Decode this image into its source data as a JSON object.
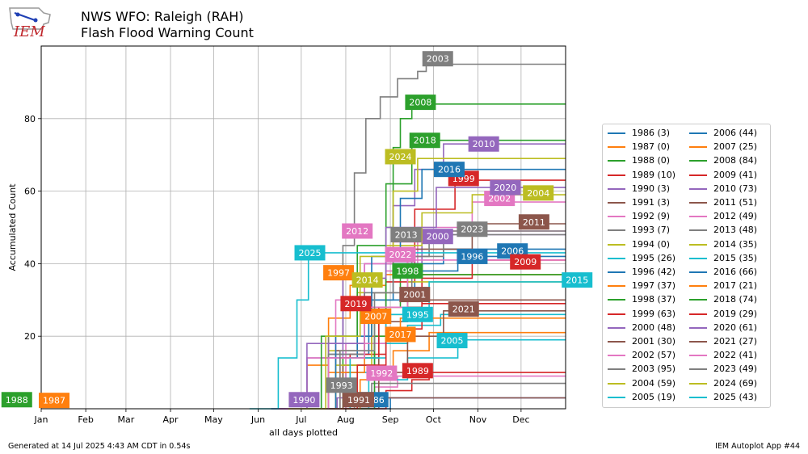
{
  "header": {
    "logo_text": "IEM",
    "title_line1": "NWS WFO: Raleigh (RAH)",
    "title_line2": "Flash Flood Warning Count"
  },
  "footer": {
    "generated": "Generated at 14 Jul 2025 4:43 AM CDT in 0.54s",
    "app": "IEM Autoplot App #44"
  },
  "chart_data": {
    "type": "line",
    "step": true,
    "xlabel": "all days plotted",
    "ylabel": "Accumulated Count",
    "x_ticks": [
      "Jan",
      "Feb",
      "Mar",
      "Apr",
      "May",
      "Jun",
      "Jul",
      "Aug",
      "Sep",
      "Oct",
      "Nov",
      "Dec"
    ],
    "y_ticks": [
      20,
      40,
      60,
      80
    ],
    "xlim": [
      "Jan 1",
      "Dec 31"
    ],
    "ylim": [
      0,
      100
    ],
    "grid": true,
    "legend_location": "right",
    "series": [
      {
        "name": "1986 (3)",
        "label": "1986",
        "color": "#1f77b4",
        "points": [
          [
            226,
            0
          ],
          [
            243,
            3
          ]
        ],
        "lx": 231,
        "ly": 2.5
      },
      {
        "name": "1987 (0)",
        "label": "1987",
        "color": "#ff7f0e",
        "points": [],
        "lx": 9,
        "ly": 2.3
      },
      {
        "name": "1988 (0)",
        "label": "1988",
        "color": "#2ca02c",
        "points": [],
        "lx": -17,
        "ly": 2.5
      },
      {
        "name": "1989 (10)",
        "label": "1989",
        "color": "#d62728",
        "points": [
          [
            219,
            0
          ],
          [
            240,
            5
          ],
          [
            258,
            8
          ],
          [
            270,
            10
          ]
        ],
        "lx": 262,
        "ly": 10.5
      },
      {
        "name": "1990 (3)",
        "label": "1990",
        "color": "#9467bd",
        "points": [
          [
            178,
            0
          ],
          [
            206,
            3
          ]
        ],
        "lx": 183,
        "ly": 2.5
      },
      {
        "name": "1991 (3)",
        "label": "1991",
        "color": "#8c564b",
        "points": [
          [
            216,
            0
          ],
          [
            235,
            3
          ]
        ],
        "lx": 221,
        "ly": 2.5
      },
      {
        "name": "1992 (9)",
        "label": "1992",
        "color": "#e377c2",
        "points": [
          [
            208,
            0
          ],
          [
            232,
            6
          ],
          [
            248,
            9
          ]
        ],
        "lx": 237,
        "ly": 9.8
      },
      {
        "name": "1993 (7)",
        "label": "1993",
        "color": "#7f7f7f",
        "points": [
          [
            202,
            0
          ],
          [
            218,
            4
          ],
          [
            230,
            7
          ]
        ],
        "lx": 209,
        "ly": 6.5
      },
      {
        "name": "1994 (0)",
        "label": "1994",
        "color": "#bcbd22",
        "points": [],
        "lx": 0,
        "ly": 0
      },
      {
        "name": "1995 (26)",
        "label": "1995",
        "color": "#17becf",
        "points": [
          [
            190,
            0
          ],
          [
            212,
            10
          ],
          [
            232,
            18
          ],
          [
            255,
            23
          ],
          [
            278,
            26
          ]
        ],
        "lx": 262,
        "ly": 26
      },
      {
        "name": "1996 (42)",
        "label": "1996",
        "color": "#1f77b4",
        "points": [
          [
            175,
            0
          ],
          [
            200,
            15
          ],
          [
            228,
            30
          ],
          [
            260,
            38
          ],
          [
            290,
            42
          ]
        ],
        "lx": 300,
        "ly": 42
      },
      {
        "name": "1997 (37)",
        "label": "1997",
        "color": "#ff7f0e",
        "points": [
          [
            166,
            0
          ],
          [
            185,
            12
          ],
          [
            200,
            25
          ],
          [
            215,
            34
          ],
          [
            240,
            37
          ]
        ],
        "lx": 207,
        "ly": 37.5
      },
      {
        "name": "1998 (37)",
        "label": "1998",
        "color": "#2ca02c",
        "points": [
          [
            182,
            0
          ],
          [
            210,
            14
          ],
          [
            232,
            28
          ],
          [
            250,
            37
          ]
        ],
        "lx": 255,
        "ly": 38
      },
      {
        "name": "1999 (63)",
        "label": "1999",
        "color": "#d62728",
        "points": [
          [
            190,
            0
          ],
          [
            215,
            15
          ],
          [
            240,
            35
          ],
          [
            260,
            55
          ],
          [
            288,
            63
          ]
        ],
        "lx": 294,
        "ly": 63.5
      },
      {
        "name": "2000 (48)",
        "label": "2000",
        "color": "#9467bd",
        "points": [
          [
            160,
            0
          ],
          [
            185,
            14
          ],
          [
            210,
            28
          ],
          [
            240,
            40
          ],
          [
            265,
            48
          ]
        ],
        "lx": 276,
        "ly": 47.5
      },
      {
        "name": "2001 (30)",
        "label": "2001",
        "color": "#8c564b",
        "points": [
          [
            188,
            0
          ],
          [
            210,
            12
          ],
          [
            235,
            24
          ],
          [
            255,
            30
          ]
        ],
        "lx": 260,
        "ly": 31.5
      },
      {
        "name": "2002 (57)",
        "label": "2002",
        "color": "#e377c2",
        "points": [
          [
            185,
            0
          ],
          [
            212,
            18
          ],
          [
            240,
            38
          ],
          [
            262,
            50
          ],
          [
            300,
            57
          ]
        ],
        "lx": 319,
        "ly": 58
      },
      {
        "name": "2003 (95)",
        "label": "2003",
        "color": "#7f7f7f",
        "points": [
          [
            182,
            0
          ],
          [
            200,
            20
          ],
          [
            210,
            45
          ],
          [
            218,
            65
          ],
          [
            226,
            80
          ],
          [
            236,
            86
          ],
          [
            248,
            91
          ],
          [
            262,
            93
          ],
          [
            268,
            95
          ]
        ],
        "lx": 276,
        "ly": 96.5
      },
      {
        "name": "2004 (59)",
        "label": "2004",
        "color": "#bcbd22",
        "points": [
          [
            175,
            0
          ],
          [
            200,
            16
          ],
          [
            220,
            32
          ],
          [
            240,
            45
          ],
          [
            265,
            54
          ],
          [
            300,
            59
          ]
        ],
        "lx": 346,
        "ly": 59.5
      },
      {
        "name": "2005 (19)",
        "label": "2005",
        "color": "#17becf",
        "points": [
          [
            200,
            0
          ],
          [
            228,
            8
          ],
          [
            255,
            14
          ],
          [
            290,
            19
          ]
        ],
        "lx": 286,
        "ly": 18.8
      },
      {
        "name": "2006 (44)",
        "label": "2006",
        "color": "#1f77b4",
        "points": [
          [
            170,
            0
          ],
          [
            195,
            14
          ],
          [
            220,
            30
          ],
          [
            245,
            40
          ],
          [
            280,
            44
          ]
        ],
        "lx": 328,
        "ly": 43.5
      },
      {
        "name": "2007 (25)",
        "label": "2007",
        "color": "#ff7f0e",
        "points": [
          [
            175,
            0
          ],
          [
            200,
            10
          ],
          [
            225,
            20
          ],
          [
            250,
            25
          ]
        ],
        "lx": 233,
        "ly": 25.5
      },
      {
        "name": "2008 (84)",
        "label": "2008",
        "color": "#2ca02c",
        "points": [
          [
            220,
            0
          ],
          [
            232,
            20
          ],
          [
            240,
            50
          ],
          [
            245,
            72
          ],
          [
            250,
            80
          ],
          [
            258,
            84
          ]
        ],
        "lx": 264,
        "ly": 84.5
      },
      {
        "name": "2009 (41)",
        "label": "2009",
        "color": "#d62728",
        "points": [
          [
            180,
            0
          ],
          [
            208,
            14
          ],
          [
            235,
            28
          ],
          [
            265,
            36
          ],
          [
            300,
            41
          ]
        ],
        "lx": 337,
        "ly": 40.5
      },
      {
        "name": "2010 (73)",
        "label": "2010",
        "color": "#9467bd",
        "points": [
          [
            172,
            0
          ],
          [
            200,
            18
          ],
          [
            225,
            40
          ],
          [
            245,
            56
          ],
          [
            260,
            66
          ],
          [
            280,
            73
          ]
        ],
        "lx": 308,
        "ly": 73
      },
      {
        "name": "2011 (51)",
        "label": "2011",
        "color": "#8c564b",
        "points": [
          [
            180,
            0
          ],
          [
            205,
            16
          ],
          [
            230,
            32
          ],
          [
            255,
            44
          ],
          [
            300,
            51
          ]
        ],
        "lx": 343,
        "ly": 51.5
      },
      {
        "name": "2012 (49)",
        "label": "2012",
        "color": "#e377c2",
        "points": [
          [
            165,
            0
          ],
          [
            185,
            14
          ],
          [
            205,
            30
          ],
          [
            225,
            40
          ],
          [
            245,
            46
          ],
          [
            270,
            49
          ]
        ],
        "lx": 220,
        "ly": 49
      },
      {
        "name": "2013 (48)",
        "label": "2013",
        "color": "#7f7f7f",
        "points": [
          [
            175,
            0
          ],
          [
            200,
            15
          ],
          [
            225,
            32
          ],
          [
            245,
            42
          ],
          [
            270,
            48
          ]
        ],
        "lx": 254,
        "ly": 48
      },
      {
        "name": "2014 (35)",
        "label": "2014",
        "color": "#bcbd22",
        "points": [
          [
            180,
            0
          ],
          [
            205,
            12
          ],
          [
            230,
            26
          ],
          [
            255,
            35
          ]
        ],
        "lx": 227,
        "ly": 35.5
      },
      {
        "name": "2015 (35)",
        "label": "2015",
        "color": "#17becf",
        "points": [
          [
            190,
            0
          ],
          [
            215,
            14
          ],
          [
            240,
            26
          ],
          [
            270,
            35
          ]
        ],
        "lx": 373,
        "ly": 35.5
      },
      {
        "name": "2016 (66)",
        "label": "2016",
        "color": "#1f77b4",
        "points": [
          [
            178,
            0
          ],
          [
            205,
            20
          ],
          [
            230,
            42
          ],
          [
            250,
            58
          ],
          [
            265,
            66
          ]
        ],
        "lx": 284,
        "ly": 66
      },
      {
        "name": "2017 (21)",
        "label": "2017",
        "color": "#ff7f0e",
        "points": [
          [
            195,
            0
          ],
          [
            222,
            8
          ],
          [
            245,
            16
          ],
          [
            270,
            21
          ]
        ],
        "lx": 250,
        "ly": 20.5
      },
      {
        "name": "2018 (74)",
        "label": "2018",
        "color": "#2ca02c",
        "points": [
          [
            172,
            0
          ],
          [
            195,
            20
          ],
          [
            220,
            45
          ],
          [
            240,
            62
          ],
          [
            258,
            74
          ]
        ],
        "lx": 267,
        "ly": 74
      },
      {
        "name": "2019 (29)",
        "label": "2019",
        "color": "#d62728",
        "points": [
          [
            195,
            0
          ],
          [
            220,
            12
          ],
          [
            240,
            22
          ],
          [
            265,
            29
          ]
        ],
        "lx": 219,
        "ly": 29
      },
      {
        "name": "2020 (61)",
        "label": "2020",
        "color": "#9467bd",
        "points": [
          [
            160,
            0
          ],
          [
            185,
            18
          ],
          [
            210,
            36
          ],
          [
            240,
            50
          ],
          [
            275,
            61
          ]
        ],
        "lx": 323,
        "ly": 61
      },
      {
        "name": "2021 (27)",
        "label": "2021",
        "color": "#8c564b",
        "points": [
          [
            210,
            0
          ],
          [
            235,
            10
          ],
          [
            255,
            20
          ],
          [
            280,
            27
          ]
        ],
        "lx": 294,
        "ly": 27.5
      },
      {
        "name": "2022 (41)",
        "label": "2022",
        "color": "#e377c2",
        "points": [
          [
            170,
            0
          ],
          [
            200,
            14
          ],
          [
            225,
            28
          ],
          [
            255,
            41
          ]
        ],
        "lx": 250,
        "ly": 42.5
      },
      {
        "name": "2023 (49)",
        "label": "2023",
        "color": "#7f7f7f",
        "points": [
          [
            182,
            0
          ],
          [
            208,
            16
          ],
          [
            232,
            32
          ],
          [
            258,
            42
          ],
          [
            280,
            49
          ]
        ],
        "lx": 300,
        "ly": 49.5
      },
      {
        "name": "2024 (69)",
        "label": "2024",
        "color": "#bcbd22",
        "points": [
          [
            172,
            0
          ],
          [
            198,
            20
          ],
          [
            222,
            42
          ],
          [
            245,
            60
          ],
          [
            262,
            69
          ]
        ],
        "lx": 250,
        "ly": 69.5
      },
      {
        "name": "2025 (43)",
        "label": "2025",
        "color": "#17becf",
        "points": [
          [
            145,
            0
          ],
          [
            165,
            14
          ],
          [
            178,
            30
          ],
          [
            186,
            43
          ]
        ],
        "lx": 187,
        "ly": 43
      }
    ]
  }
}
